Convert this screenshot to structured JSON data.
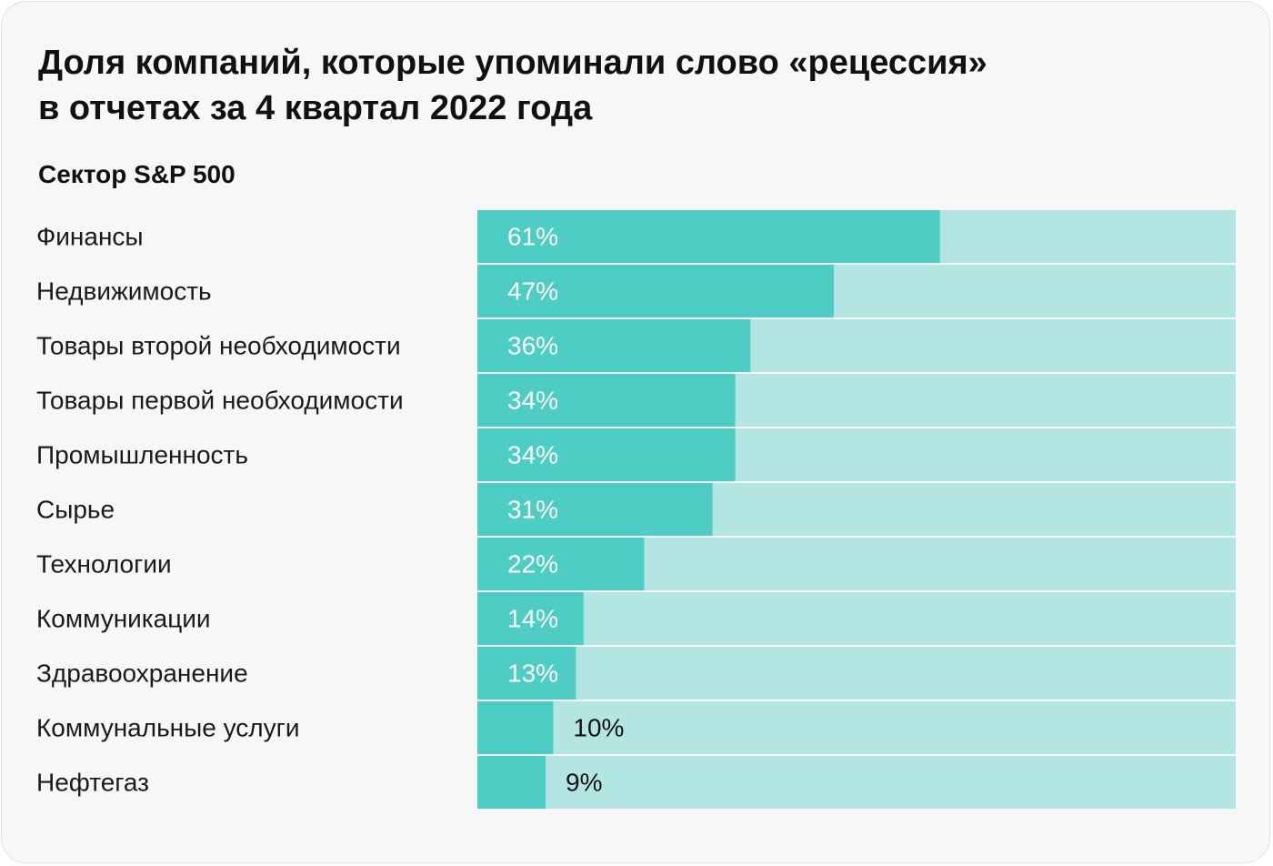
{
  "header": {
    "title_line1": "Доля компаний, которые упоминали слово «рецессия»",
    "title_line2": "в отчетах за 4 квартал 2022 года",
    "subtitle": "Сектор S&P 500"
  },
  "colors": {
    "bar": "#4ecdc4",
    "track": "#b3e6e2",
    "label_on_bar": "#ffffff",
    "label_on_track": "#111111"
  },
  "chart_data": {
    "type": "bar",
    "orientation": "horizontal",
    "unit": "%",
    "xlim": [
      0,
      100
    ],
    "grid": false,
    "legend": "none",
    "categories": [
      "Финансы",
      "Недвижимость",
      "Товары второй необходимости",
      "Товары первой необходимости",
      "Промышленность",
      "Сырье",
      "Технологии",
      "Коммуникации",
      "Здравоохранение",
      "Коммунальные услуги",
      "Нефтегаз"
    ],
    "values": [
      61,
      47,
      36,
      34,
      34,
      31,
      22,
      14,
      13,
      10,
      9
    ],
    "value_labels": [
      "61%",
      "47%",
      "36%",
      "34%",
      "34%",
      "31%",
      "22%",
      "14%",
      "13%",
      "10%",
      "9%"
    ]
  }
}
